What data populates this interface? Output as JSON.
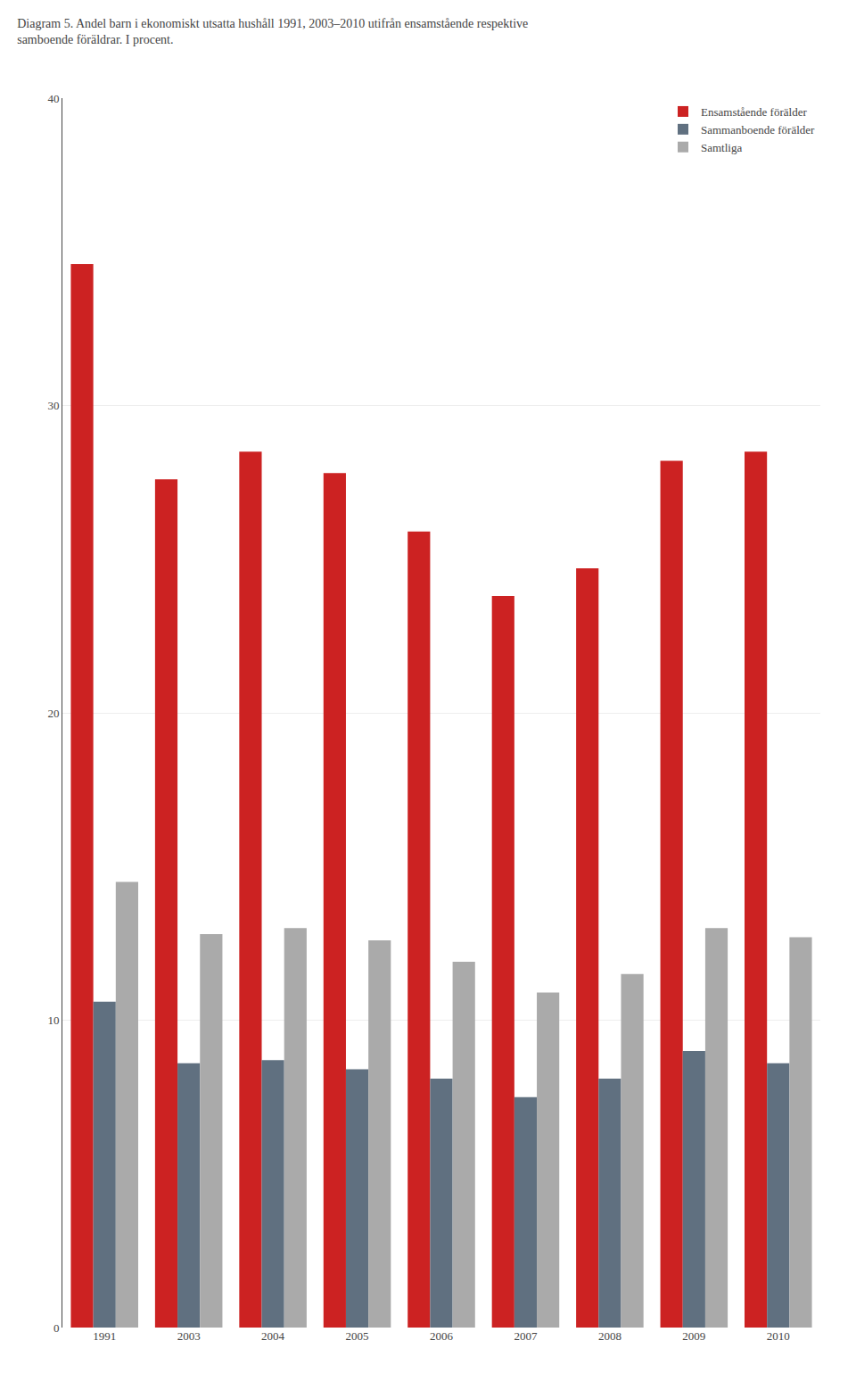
{
  "chart_data": {
    "type": "bar",
    "title": "Diagram 5. Andel barn i ekonomiskt utsatta hushåll 1991, 2003–2010 utifrån ensamstående respektive\nsamboende föräldrar. I procent.",
    "categories": [
      "1991",
      "2003",
      "2004",
      "2005",
      "2006",
      "2007",
      "2008",
      "2009",
      "2010"
    ],
    "series": [
      {
        "name": "Ensamstående förälder",
        "color": "#cc2222",
        "values": [
          34.6,
          27.6,
          28.5,
          27.8,
          25.9,
          23.8,
          24.7,
          28.2,
          28.5
        ]
      },
      {
        "name": "Sammanboende förälder",
        "color": "#607080",
        "values": [
          10.6,
          8.6,
          8.7,
          8.4,
          8.1,
          7.5,
          8.1,
          9.0,
          8.6
        ]
      },
      {
        "name": "Samtliga",
        "color": "#aaaaaa",
        "values": [
          14.5,
          12.8,
          13.0,
          12.6,
          11.9,
          10.9,
          11.5,
          13.0,
          12.7
        ]
      }
    ],
    "ylim": [
      0,
      40
    ],
    "yticks": [
      0,
      10,
      20,
      30,
      40
    ],
    "grid": true,
    "legend": "upper right"
  }
}
